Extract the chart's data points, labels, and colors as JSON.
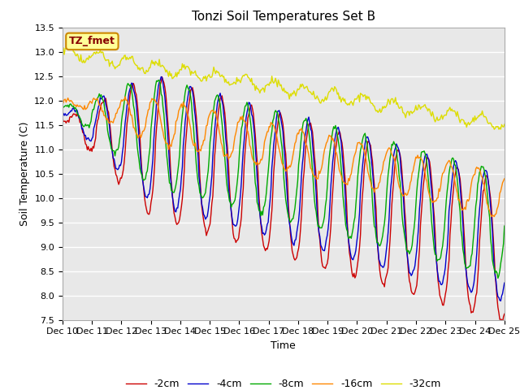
{
  "title": "Tonzi Soil Temperatures Set B",
  "xlabel": "Time",
  "ylabel": "Soil Temperature (C)",
  "ylim": [
    7.5,
    13.5
  ],
  "yticks": [
    7.5,
    8.0,
    8.5,
    9.0,
    9.5,
    10.0,
    10.5,
    11.0,
    11.5,
    12.0,
    12.5,
    13.0,
    13.5
  ],
  "bg_color": "#e8e8e8",
  "fig_color": "#ffffff",
  "legend_labels": [
    "-2cm",
    "-4cm",
    "-8cm",
    "-16cm",
    "-32cm"
  ],
  "line_colors": [
    "#cc0000",
    "#0000cc",
    "#00aa00",
    "#ff8800",
    "#dddd00"
  ],
  "annotation_text": "TZ_fmet",
  "annotation_bg": "#ffff99",
  "annotation_border": "#cc8800",
  "xtick_labels": [
    "Dec 10",
    "Dec 11",
    "Dec 12",
    "Dec 13",
    "Dec 14",
    "Dec 15",
    "Dec 16",
    "Dec 17",
    "Dec 18",
    "Dec 19",
    "Dec 20",
    "Dec 21",
    "Dec 22",
    "Dec 23",
    "Dec 24",
    "Dec 25"
  ]
}
